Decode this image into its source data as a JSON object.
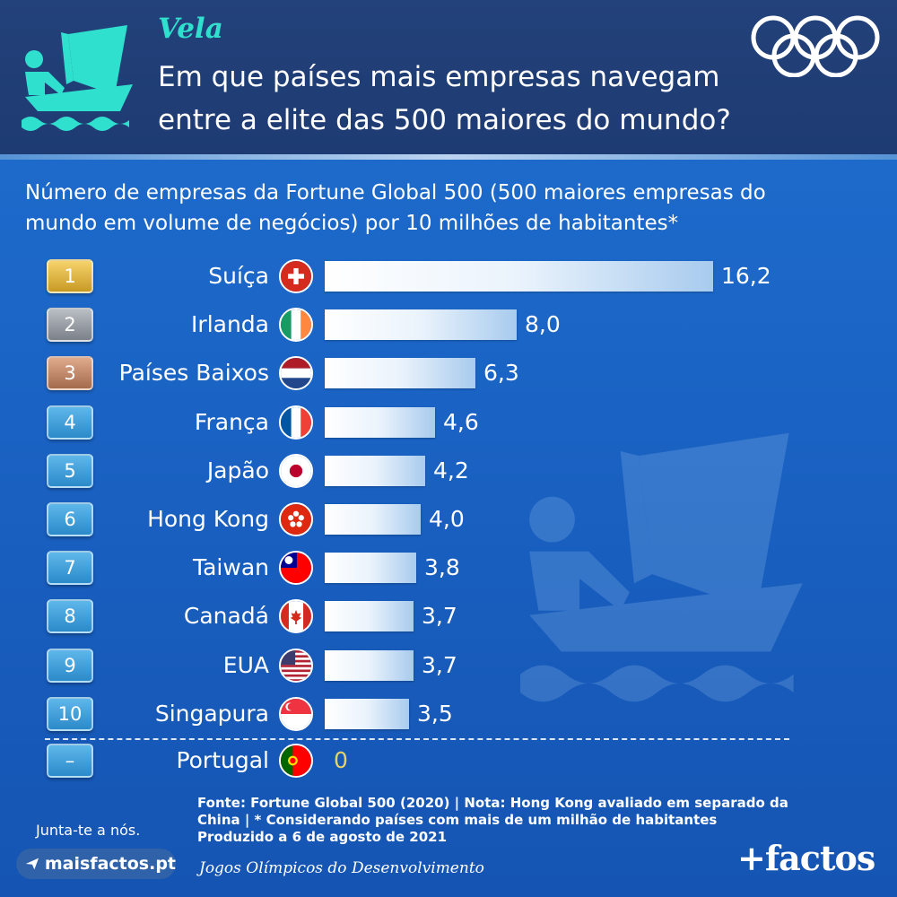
{
  "header": {
    "sport": "Vela",
    "title_line1": "Em que países mais empresas navegam",
    "title_line2": "entre a elite das 500 maiores do mundo?"
  },
  "subtitle_line1": "Número de empresas da Fortune Global 500 (500 maiores empresas do",
  "subtitle_line2": "mundo em volume de negócios) por 10 milhões de habitantes*",
  "chart_data": {
    "type": "bar",
    "orientation": "horizontal",
    "categories": [
      "Suíça",
      "Irlanda",
      "Países Baixos",
      "França",
      "Japão",
      "Hong Kong",
      "Taiwan",
      "Canadá",
      "EUA",
      "Singapura"
    ],
    "ranks": [
      "1",
      "2",
      "3",
      "4",
      "5",
      "6",
      "7",
      "8",
      "9",
      "10"
    ],
    "values": [
      16.2,
      8.0,
      6.3,
      4.6,
      4.2,
      4.0,
      3.8,
      3.7,
      3.7,
      3.5
    ],
    "value_labels": [
      "16,2",
      "8,0",
      "6,3",
      "4,6",
      "4,2",
      "4,0",
      "3,8",
      "3,7",
      "3,7",
      "3,5"
    ],
    "reference": {
      "rank": "–",
      "category": "Portugal",
      "value": 0,
      "value_label": "0"
    },
    "medal_colors": {
      "gold": "#c89a24",
      "silver": "#7c8189",
      "bronze": "#a46a4c"
    }
  },
  "footer": {
    "note_line1": "Fonte: Fortune Global 500 (2020) | Nota: Hong Kong avaliado em separado da",
    "note_line2": "China | * Considerando países com mais de um milhão de habitantes",
    "note_line3": "Produzido a 6 de agosto de 2021",
    "join_text": "Junta-te a nós.",
    "site": "maisfactos.pt",
    "games_name": "Jogos Olímpicos do Desenvolvimento",
    "brand": "+factos"
  },
  "colors": {
    "accent": "#2fe0cf",
    "header_bg": "#1e3b73",
    "background": "#1a63c4",
    "zero_value": "#e5d36a"
  }
}
